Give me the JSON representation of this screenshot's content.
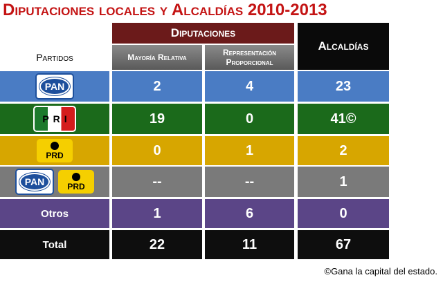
{
  "header": {
    "title": "Diputaciones locales y Alcaldías 2010-2013"
  },
  "table": {
    "columns": {
      "party": "Partidos",
      "group": "Diputaciones",
      "sub": [
        "Mayoría Relativa",
        "Representación Proporcional"
      ],
      "alcaldias": "Alcaldías"
    },
    "rows": [
      {
        "logos": [
          "PAN"
        ],
        "cells": [
          "2",
          "4",
          "23"
        ]
      },
      {
        "logos": [
          "PRI"
        ],
        "cells": [
          "19",
          "0",
          "41©"
        ]
      },
      {
        "logos": [
          "PRD"
        ],
        "cells": [
          "0",
          "1",
          "2"
        ]
      },
      {
        "logos": [
          "PAN",
          "PRD"
        ],
        "cells": [
          "--",
          "--",
          "1"
        ]
      },
      {
        "label": "Otros",
        "cells": [
          "1",
          "6",
          "0"
        ]
      },
      {
        "label": "Total",
        "cells": [
          "22",
          "11",
          "67"
        ]
      }
    ]
  },
  "footnote": "©Gana la capital del estado."
}
